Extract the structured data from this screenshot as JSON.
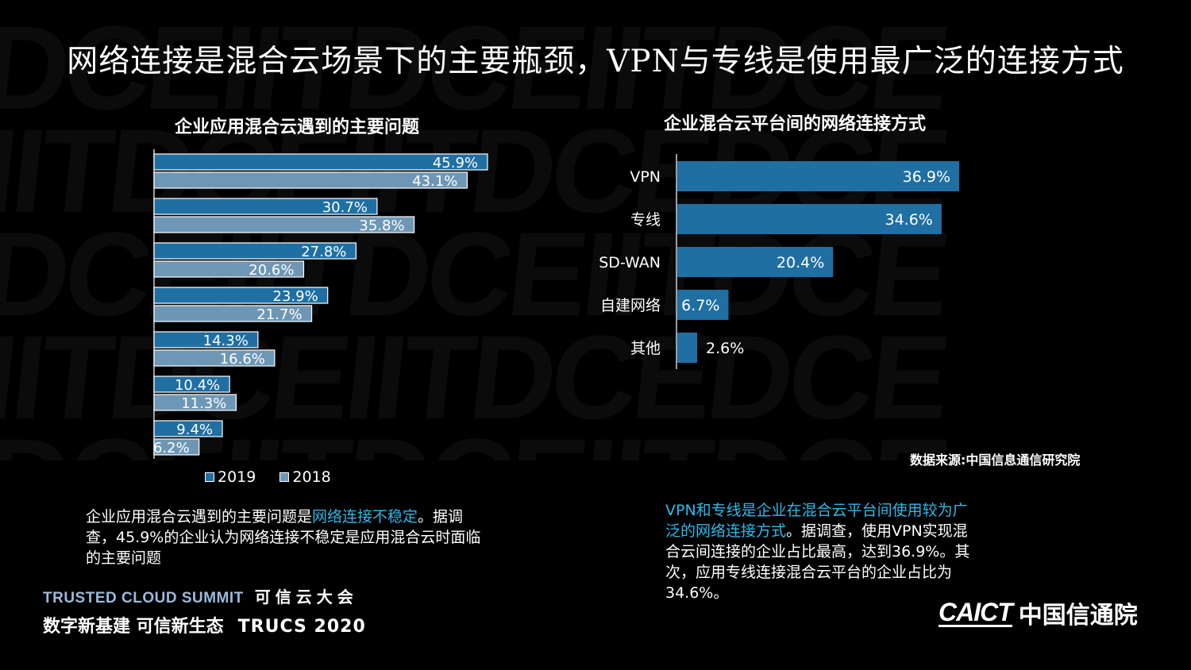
{
  "title": "网络连接是混合云场景下的主要瓶颈，VPN与专线是使用最广泛的连接方式",
  "watermark_text": "DCEIITDCEIITDCE",
  "chart_data": [
    {
      "type": "bar",
      "orientation": "horizontal",
      "title": "企业应用混合云遇到的主要问题",
      "categories": [
        "",
        "",
        "",
        "",
        "",
        "",
        ""
      ],
      "series": [
        {
          "name": "2019",
          "values": [
            45.9,
            30.7,
            27.8,
            23.9,
            14.3,
            10.4,
            9.4
          ],
          "labels": [
            "45.9%",
            "30.7%",
            "27.8%",
            "23.9%",
            "14.3%",
            "10.4%",
            "9.4%"
          ],
          "color": "#1f6fa3"
        },
        {
          "name": "2018",
          "values": [
            43.1,
            35.8,
            20.6,
            21.7,
            16.6,
            11.3,
            6.2
          ],
          "labels": [
            "43.1%",
            "35.8%",
            "20.6%",
            "21.7%",
            "16.6%",
            "11.3%",
            "6.2%"
          ],
          "color": "#6e97b6"
        }
      ],
      "xlim": [
        0,
        50
      ],
      "legend": "bottom",
      "grid": false
    },
    {
      "type": "bar",
      "orientation": "horizontal",
      "title": "企业混合云平台间的网络连接方式",
      "categories": [
        "VPN",
        "专线",
        "SD-WAN",
        "自建网络",
        "其他"
      ],
      "values": [
        36.9,
        34.6,
        20.4,
        6.7,
        2.6
      ],
      "labels": [
        "36.9%",
        "34.6%",
        "20.4%",
        "6.7%",
        "2.6%"
      ],
      "color": "#1f6fa3",
      "xlim": [
        0,
        40
      ],
      "grid": false
    }
  ],
  "legend": [
    {
      "label": "2019",
      "color": "#1f6fa3"
    },
    {
      "label": "2018",
      "color": "#6e97b6"
    }
  ],
  "source": "数据来源:中国信息通信研究院",
  "left_note": {
    "part1": "企业应用混合云遇到的主要问题是",
    "highlight": "网络连接不稳定",
    "part2": "。据调查，45.9%的企业认为网络连接不稳定是应用混合云时面临的主要问题"
  },
  "right_note": {
    "highlight": "VPN和专线是企业在混合云平台间使用较为广泛的网络连接方式",
    "part2": "。据调查，使用VPN实现混合云间连接的企业占比最高，达到36.9%。其次，应用专线连接混合云平台的企业占比为34.6%。"
  },
  "footer": {
    "summit_en": "TRUSTED CLOUD SUMMIT",
    "summit_cn": "可信云大会",
    "slogan": "数字新基建 可信新生态",
    "trucs": "TRUCS 2020",
    "caict_logo": "CAICT",
    "caict_cn": "中国信通院"
  }
}
